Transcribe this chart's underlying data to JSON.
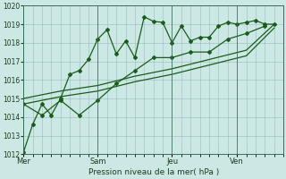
{
  "background_color": "#cce8e4",
  "grid_color": "#99bbbb",
  "line_color": "#1a5c1a",
  "marker_color": "#1a5c1a",
  "xlabel": "Pression niveau de la mer( hPa )",
  "ylim": [
    1012,
    1020
  ],
  "yticks": [
    1012,
    1013,
    1014,
    1015,
    1016,
    1017,
    1018,
    1019,
    1020
  ],
  "day_labels": [
    "Mer",
    "Sam",
    "Jeu",
    "Ven"
  ],
  "day_positions": [
    0,
    8,
    16,
    23
  ],
  "vline_positions": [
    0,
    8,
    16,
    23
  ],
  "xlim": [
    0,
    28
  ],
  "series1_x": [
    0,
    1,
    2,
    3,
    4,
    5,
    6,
    7,
    8,
    9,
    10,
    11,
    12,
    13,
    14,
    15,
    16,
    17,
    18,
    19,
    20,
    21,
    22,
    23,
    24,
    25,
    26,
    27
  ],
  "series1_y": [
    1012.1,
    1013.6,
    1014.7,
    1014.1,
    1015.0,
    1016.3,
    1016.5,
    1017.1,
    1018.2,
    1018.7,
    1017.4,
    1018.1,
    1017.2,
    1019.4,
    1019.15,
    1019.1,
    1018.0,
    1018.9,
    1018.1,
    1018.3,
    1018.3,
    1018.9,
    1019.1,
    1019.0,
    1019.1,
    1019.2,
    1019.0,
    1019.0
  ],
  "series2_x": [
    0,
    2,
    4,
    6,
    8,
    10,
    12,
    14,
    16,
    18,
    20,
    22,
    24,
    26
  ],
  "series2_y": [
    1014.7,
    1014.1,
    1014.9,
    1014.1,
    1014.9,
    1015.8,
    1016.5,
    1017.2,
    1017.2,
    1017.5,
    1017.5,
    1018.2,
    1018.5,
    1018.9
  ],
  "series3_x": [
    0,
    4,
    8,
    12,
    16,
    20,
    24,
    27
  ],
  "series3_y": [
    1015.0,
    1015.4,
    1015.7,
    1016.2,
    1016.6,
    1017.1,
    1017.6,
    1019.0
  ],
  "series4_x": [
    0,
    4,
    8,
    12,
    16,
    20,
    24,
    27
  ],
  "series4_y": [
    1014.7,
    1015.1,
    1015.4,
    1015.9,
    1016.3,
    1016.8,
    1017.3,
    1018.8
  ]
}
